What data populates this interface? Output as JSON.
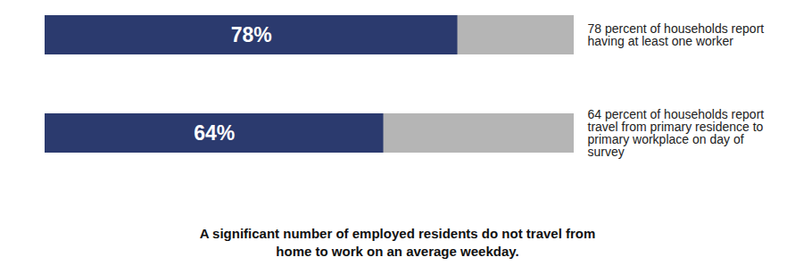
{
  "chart_data": {
    "type": "bar",
    "orientation": "horizontal",
    "categories": [
      "78 percent of households report having at least one worker",
      "64 percent of households report travel from primary residence to primary workplace on day of survey"
    ],
    "values": [
      78,
      64
    ],
    "value_labels": [
      "78%",
      "64%"
    ],
    "data_labels": true,
    "color": "#2b3a6e",
    "xlim": [
      0,
      100
    ],
    "tick_labels": false,
    "grid": false,
    "caption": "A significant number of employed residents do not travel from home to work on an average weekday."
  }
}
